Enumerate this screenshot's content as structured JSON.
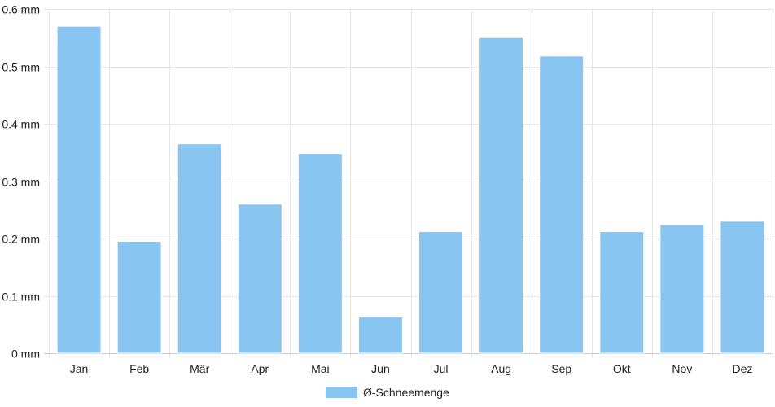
{
  "chart_data": {
    "type": "bar",
    "categories": [
      "Jan",
      "Feb",
      "Mär",
      "Apr",
      "Mai",
      "Jun",
      "Jul",
      "Aug",
      "Sep",
      "Okt",
      "Nov",
      "Dez"
    ],
    "series": [
      {
        "name": "Ø-Schneemenge",
        "values": [
          0.57,
          0.195,
          0.365,
          0.26,
          0.348,
          0.063,
          0.212,
          0.55,
          0.518,
          0.212,
          0.224,
          0.23
        ],
        "color": "#88c6f1"
      }
    ],
    "y_ticks": [
      "0 mm",
      "0.1 mm",
      "0.2 mm",
      "0.3 mm",
      "0.4 mm",
      "0.5 mm",
      "0.6 mm"
    ],
    "ylim": [
      0,
      0.6
    ],
    "grid": true,
    "legend_position": "bottom",
    "grid_color": "#e6e6e6"
  }
}
